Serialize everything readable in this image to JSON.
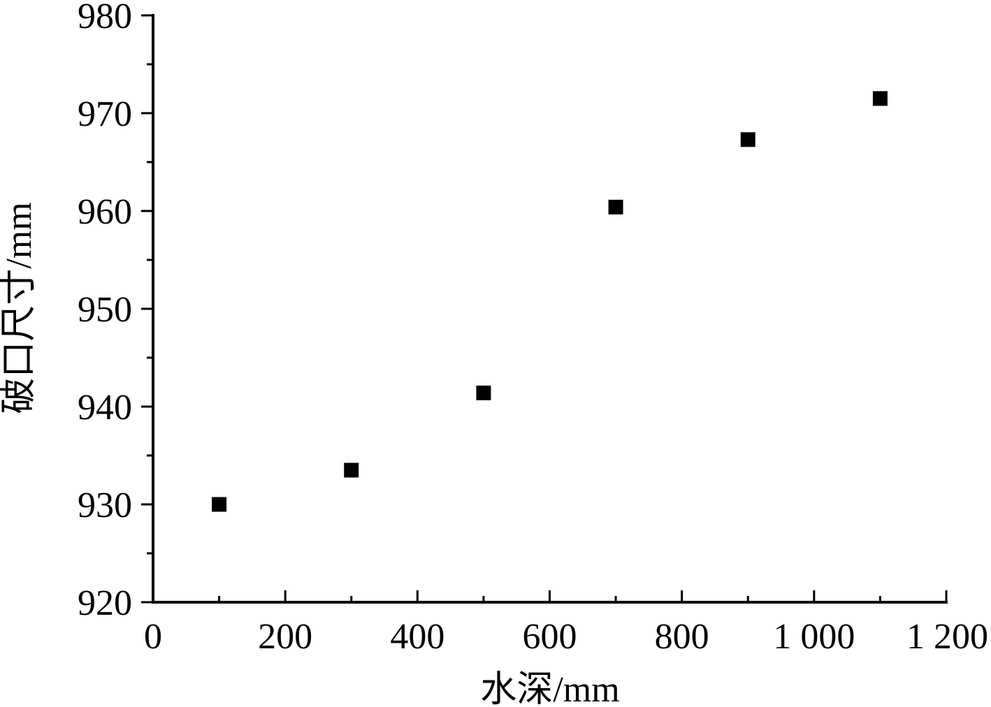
{
  "chart_data": {
    "type": "scatter",
    "title": "",
    "xlabel": "水深/mm",
    "ylabel": "破口尺寸/mm",
    "xlim": [
      0,
      1200
    ],
    "ylim": [
      920,
      980
    ],
    "x_ticks": [
      0,
      200,
      400,
      600,
      800,
      1000,
      1200
    ],
    "x_tick_labels": [
      "0",
      "200",
      "400",
      "600",
      "800",
      "1 000",
      "1 200"
    ],
    "y_ticks": [
      920,
      930,
      940,
      950,
      960,
      970,
      980
    ],
    "y_tick_labels": [
      "920",
      "930",
      "940",
      "950",
      "960",
      "970",
      "980"
    ],
    "grid": false,
    "legend": "none",
    "marker": "filled-square",
    "colors": {
      "marker": "#000000",
      "axis": "#000000"
    },
    "series": [
      {
        "x": [
          100,
          300,
          500,
          700,
          900,
          1100
        ],
        "y": [
          930.0,
          933.5,
          941.4,
          960.4,
          967.3,
          971.5
        ]
      }
    ]
  }
}
